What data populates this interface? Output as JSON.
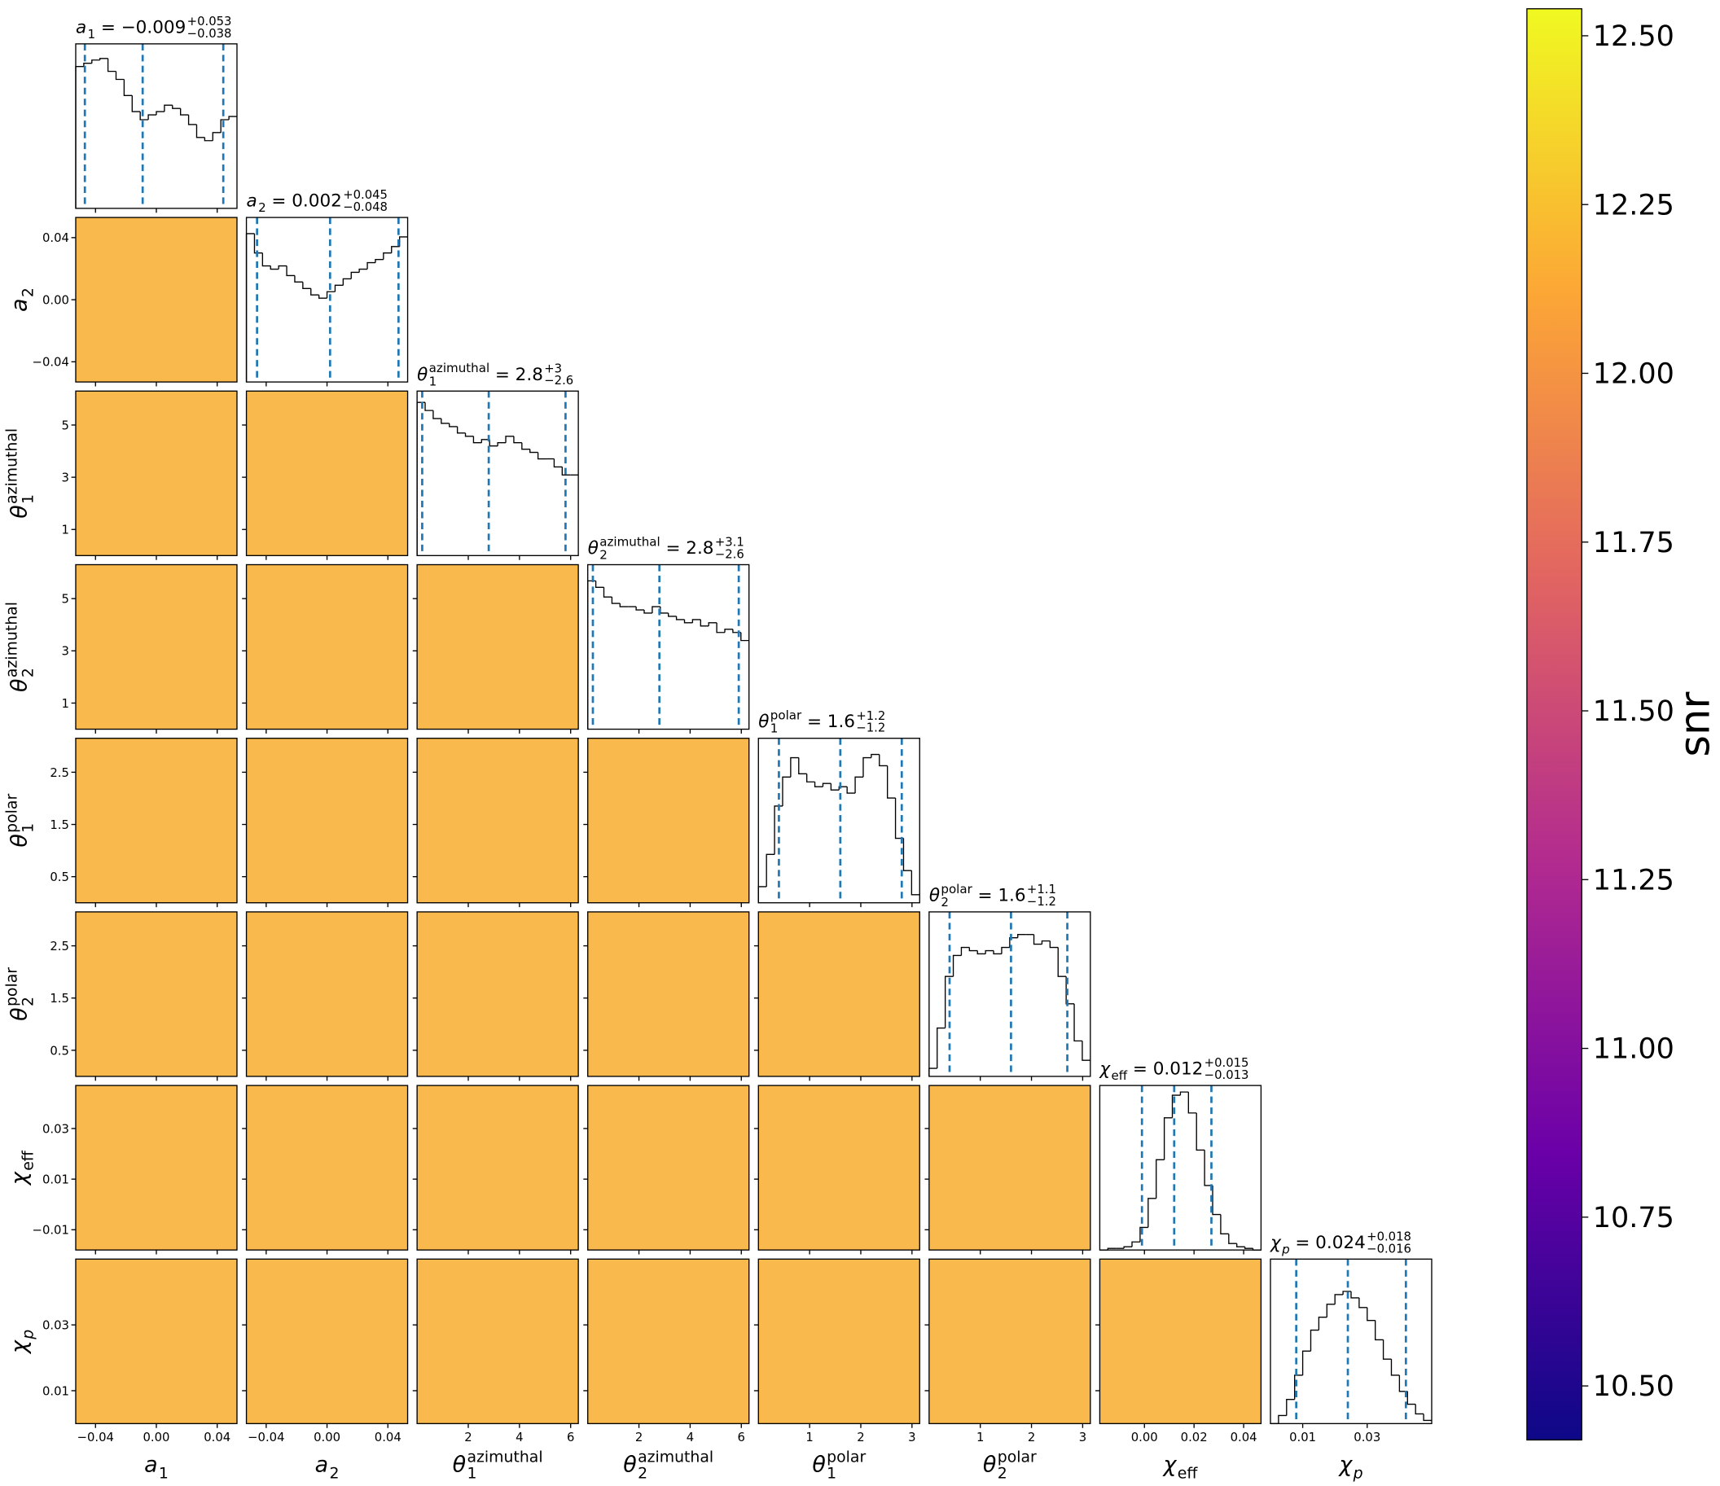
{
  "chart_data": {
    "type": "corner",
    "separator": "=",
    "hist_color": "#000000",
    "quantile_color": "#1f77b4",
    "scatter_color": "#f8b13a",
    "params": [
      {
        "label": {
          "base": "a",
          "sub": "1"
        },
        "lim": [
          -0.053,
          0.053
        ],
        "xticks": [
          {
            "value": -0.04,
            "label": "−0.04"
          },
          {
            "value": 0,
            "label": "0.00"
          },
          0.04
        ],
        "yticks": [],
        "title_value": "−0.009",
        "title_plus": "+0.053",
        "title_minus": "−0.038",
        "quantiles": [
          -0.047,
          -0.009,
          0.044
        ],
        "hist": [
          0.88,
          0.9,
          0.92,
          0.93,
          0.85,
          0.8,
          0.7,
          0.6,
          0.55,
          0.58,
          0.6,
          0.64,
          0.62,
          0.58,
          0.52,
          0.44,
          0.42,
          0.47,
          0.55,
          0.57
        ]
      },
      {
        "label": {
          "base": "a",
          "sub": "2"
        },
        "lim": [
          -0.053,
          0.053
        ],
        "xticks": [
          {
            "value": -0.04,
            "label": "−0.04"
          },
          {
            "value": 0,
            "label": "0.00"
          },
          0.04
        ],
        "yticks": [
          {
            "value": -0.04,
            "label": "−0.04"
          },
          {
            "value": 0,
            "label": "0.00"
          },
          0.04
        ],
        "title_value": "0.002",
        "title_plus": "+0.045",
        "title_minus": "−0.048",
        "quantiles": [
          -0.046,
          0.002,
          0.047
        ],
        "hist": [
          0.92,
          0.8,
          0.72,
          0.7,
          0.72,
          0.66,
          0.62,
          0.58,
          0.54,
          0.52,
          0.56,
          0.6,
          0.64,
          0.68,
          0.7,
          0.74,
          0.76,
          0.8,
          0.84,
          0.9
        ]
      },
      {
        "label": {
          "base": "θ",
          "sub": "1",
          "sup": "azimuthal"
        },
        "lim": [
          0,
          6.3
        ],
        "xticks": [
          2,
          4,
          6
        ],
        "yticks": [
          1,
          3,
          5
        ],
        "title_value": "2.8",
        "title_plus": "+3",
        "title_minus": "−2.6",
        "quantiles": [
          0.2,
          2.8,
          5.8
        ],
        "hist": [
          0.95,
          0.9,
          0.85,
          0.82,
          0.8,
          0.76,
          0.74,
          0.7,
          0.72,
          0.68,
          0.7,
          0.74,
          0.7,
          0.66,
          0.64,
          0.6,
          0.6,
          0.55,
          0.5,
          0.5
        ]
      },
      {
        "label": {
          "base": "θ",
          "sub": "2",
          "sup": "azimuthal"
        },
        "lim": [
          0,
          6.3
        ],
        "xticks": [
          2,
          4,
          6
        ],
        "yticks": [
          1,
          3,
          5
        ],
        "title_value": "2.8",
        "title_plus": "+3.1",
        "title_minus": "−2.6",
        "quantiles": [
          0.2,
          2.8,
          5.9
        ],
        "hist": [
          0.92,
          0.88,
          0.82,
          0.78,
          0.76,
          0.76,
          0.74,
          0.72,
          0.76,
          0.72,
          0.7,
          0.68,
          0.66,
          0.68,
          0.64,
          0.66,
          0.6,
          0.62,
          0.6,
          0.55
        ]
      },
      {
        "label": {
          "base": "θ",
          "sub": "1",
          "sup": "polar"
        },
        "lim": [
          0,
          3.15
        ],
        "xticks": [
          1,
          2,
          3
        ],
        "yticks": [
          0.5,
          1.5,
          2.5
        ],
        "title_value": "1.6",
        "title_plus": "+1.2",
        "title_minus": "−1.2",
        "quantiles": [
          0.4,
          1.6,
          2.8
        ],
        "hist": [
          0.1,
          0.3,
          0.6,
          0.78,
          0.9,
          0.8,
          0.75,
          0.72,
          0.74,
          0.7,
          0.72,
          0.68,
          0.78,
          0.9,
          0.92,
          0.85,
          0.65,
          0.4,
          0.2,
          0.05
        ]
      },
      {
        "label": {
          "base": "θ",
          "sub": "2",
          "sup": "polar"
        },
        "lim": [
          0,
          3.15
        ],
        "xticks": [
          1,
          2,
          3
        ],
        "yticks": [
          0.5,
          1.5,
          2.5
        ],
        "title_value": "1.6",
        "title_plus": "+1.1",
        "title_minus": "−1.2",
        "quantiles": [
          0.4,
          1.6,
          2.7
        ],
        "hist": [
          0.05,
          0.3,
          0.62,
          0.75,
          0.8,
          0.78,
          0.76,
          0.78,
          0.76,
          0.8,
          0.86,
          0.88,
          0.88,
          0.82,
          0.84,
          0.8,
          0.62,
          0.45,
          0.22,
          0.1
        ]
      },
      {
        "label": {
          "base": "χ",
          "sub": "eff"
        },
        "lim": [
          -0.018,
          0.047
        ],
        "xticks": [
          {
            "value": 0,
            "label": "0.00"
          },
          0.02,
          0.04
        ],
        "yticks": [
          {
            "value": -0.01,
            "label": "−0.01"
          },
          0.01,
          0.03
        ],
        "title_value": "0.012",
        "title_plus": "+0.015",
        "title_minus": "−0.013",
        "quantiles": [
          -0.001,
          0.012,
          0.027
        ],
        "hist": [
          0,
          0.01,
          0.01,
          0.02,
          0.05,
          0.14,
          0.32,
          0.56,
          0.82,
          0.96,
          0.98,
          0.85,
          0.62,
          0.4,
          0.22,
          0.1,
          0.04,
          0.02,
          0.01,
          0
        ]
      },
      {
        "label": {
          "base": "χ",
          "sub": "p"
        },
        "lim": [
          0,
          0.05
        ],
        "xticks": [
          0.01,
          0.03
        ],
        "yticks": [
          0.01,
          0.03
        ],
        "title_value": "0.024",
        "title_plus": "+0.018",
        "title_minus": "−0.016",
        "quantiles": [
          0.008,
          0.024,
          0.042
        ],
        "hist": [
          0,
          0.05,
          0.15,
          0.3,
          0.45,
          0.58,
          0.66,
          0.74,
          0.8,
          0.82,
          0.78,
          0.72,
          0.64,
          0.52,
          0.4,
          0.3,
          0.2,
          0.12,
          0.06,
          0.02
        ]
      }
    ],
    "colorbar": {
      "label": "snr",
      "lim": [
        10.42,
        12.54
      ],
      "ticks": [
        {
          "value": 10.5,
          "label": "10.50"
        },
        {
          "value": 10.75,
          "label": "10.75"
        },
        {
          "value": 11,
          "label": "11.00"
        },
        {
          "value": 11.25,
          "label": "11.25"
        },
        {
          "value": 11.5,
          "label": "11.50"
        },
        {
          "value": 11.75,
          "label": "11.75"
        },
        {
          "value": 12,
          "label": "12.00"
        },
        {
          "value": 12.25,
          "label": "12.25"
        },
        {
          "value": 12.5,
          "label": "12.50"
        }
      ],
      "colormap": [
        "#0d0887",
        "#6a00a8",
        "#b12a90",
        "#e16462",
        "#fca636",
        "#f0f921"
      ]
    }
  }
}
